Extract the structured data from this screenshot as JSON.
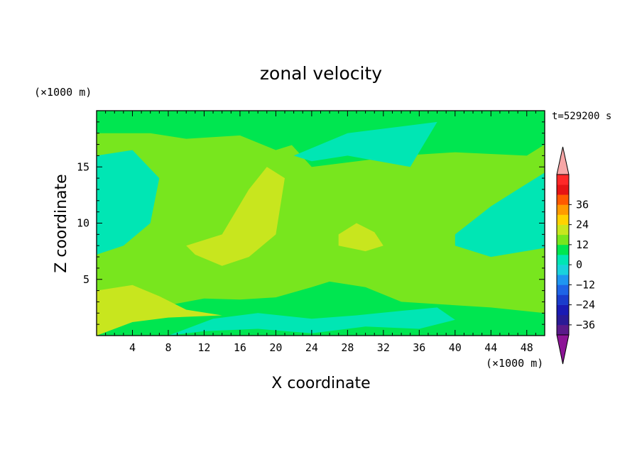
{
  "chart_data": {
    "type": "heatmap",
    "title": "zonal velocity",
    "xlabel": "X coordinate",
    "ylabel": "Z coordinate",
    "x_unit": "(×1000 m)",
    "y_unit": "(×1000 m)",
    "time_label": "t=529200 s",
    "xlim": [
      0,
      50
    ],
    "ylim": [
      0,
      20
    ],
    "x_ticks": [
      4,
      8,
      12,
      16,
      20,
      24,
      28,
      32,
      36,
      40,
      44,
      48
    ],
    "y_ticks": [
      5,
      10,
      15
    ],
    "colorbar": {
      "levels": [
        -42,
        -36,
        -30,
        -24,
        -18,
        -12,
        -6,
        0,
        6,
        12,
        18,
        24,
        30,
        36,
        42
      ],
      "colors": [
        "#5a1a8a",
        "#2a1a96",
        "#1a1ab4",
        "#1a3ccc",
        "#1e64e6",
        "#1e96f0",
        "#19d2dc",
        "#00e6b4",
        "#00e650",
        "#78e61e",
        "#c8e61e",
        "#ffd200",
        "#ff9b00",
        "#ff5a00",
        "#e61414",
        "#ff2828"
      ],
      "under_color": "#8c1496",
      "over_color": "#f7a6a6",
      "tick_labels": [
        "36",
        "24",
        "12",
        "0",
        "−12",
        "−24",
        "−36"
      ]
    },
    "field_description_levels": {
      "background": 3,
      "regions": [
        {
          "level": 4,
          "x": [
            0,
            7,
            12,
            20,
            24,
            34,
            40,
            48,
            50,
            50,
            44,
            38,
            34,
            30,
            26,
            24,
            20,
            16,
            12,
            8,
            4,
            0
          ],
          "y": [
            19,
            18,
            18.7,
            18.5,
            15,
            16,
            16.3,
            16,
            17,
            2,
            2.5,
            2.8,
            3,
            4.3,
            4.8,
            4.3,
            3.4,
            3.2,
            3.3,
            2.7,
            3.9,
            3.4
          ]
        },
        {
          "level": 5,
          "x": [
            0,
            4,
            7,
            10,
            14,
            8,
            4,
            0
          ],
          "y": [
            4,
            4.5,
            3.5,
            2.3,
            1.8,
            1.6,
            1.2,
            0
          ]
        },
        {
          "level": 5,
          "x": [
            10,
            14,
            17,
            19,
            21,
            20,
            17,
            14,
            11
          ],
          "y": [
            8,
            9,
            13,
            15,
            14,
            9,
            7,
            6.2,
            7.2
          ]
        },
        {
          "level": 5,
          "x": [
            27,
            29,
            31,
            32,
            30,
            27
          ],
          "y": [
            9,
            10,
            9.2,
            8,
            7.5,
            8
          ]
        },
        {
          "level": 2,
          "x": [
            0,
            4,
            7,
            6,
            3,
            0
          ],
          "y": [
            16,
            16.5,
            14,
            10,
            8,
            7.2
          ]
        },
        {
          "level": 2,
          "x": [
            40,
            44,
            47,
            50,
            50,
            44,
            40
          ],
          "y": [
            9,
            11.5,
            13,
            14.5,
            7.8,
            7,
            8
          ]
        },
        {
          "level": 2,
          "x": [
            8,
            13,
            18,
            24,
            29,
            34,
            38,
            40,
            36,
            30,
            24,
            18,
            12,
            8
          ],
          "y": [
            0,
            1.5,
            2,
            1.5,
            1.8,
            2.2,
            2.5,
            1.4,
            0.6,
            0.8,
            0.2,
            0.6,
            0.4,
            0
          ]
        },
        {
          "level": 2,
          "x": [
            22,
            28,
            34,
            38,
            35,
            28,
            24
          ],
          "y": [
            16,
            18,
            18.6,
            19,
            15,
            16,
            15.5
          ]
        },
        {
          "level": 3,
          "x": [
            0,
            6,
            12,
            20,
            22,
            20,
            16,
            10,
            6,
            0
          ],
          "y": [
            20,
            19.7,
            19.5,
            20,
            17,
            16.5,
            17.8,
            17.5,
            18,
            18
          ]
        }
      ]
    }
  }
}
